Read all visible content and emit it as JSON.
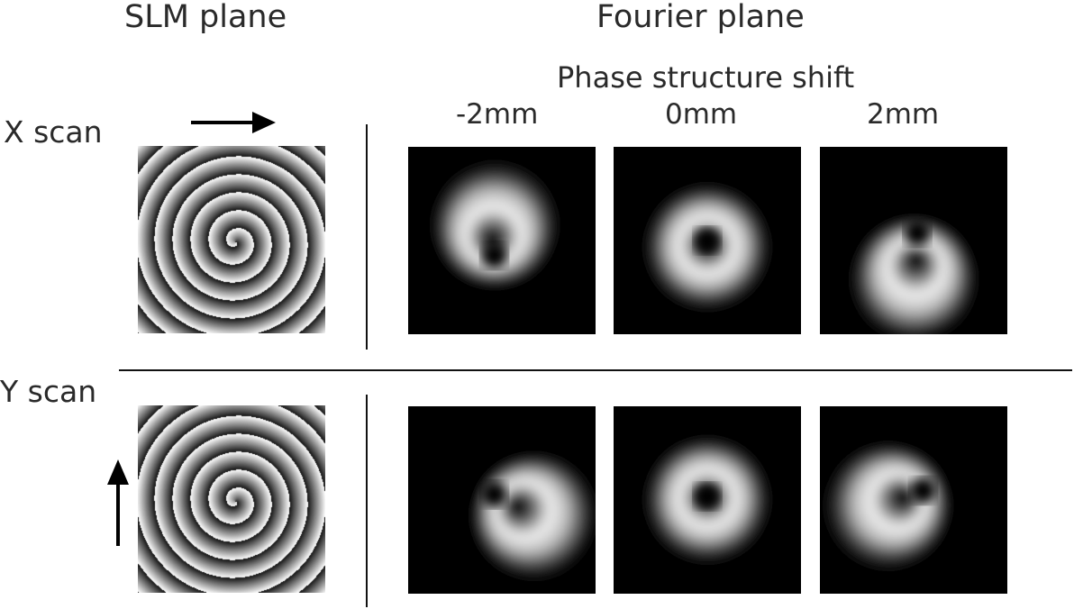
{
  "headers": {
    "slm": "SLM plane",
    "fourier": "Fourier plane",
    "subtitle": "Phase structure shift"
  },
  "shifts": [
    "-2mm",
    "0mm",
    "2mm"
  ],
  "rows": [
    {
      "label": "X scan",
      "arrow_direction": "right",
      "spots": [
        {
          "center": [
            0.46,
            0.58
          ],
          "ring": [
            0.48,
            0.45
          ]
        },
        {
          "center": [
            0.5,
            0.5
          ],
          "ring": [
            0.5,
            0.52
          ]
        },
        {
          "center": [
            0.52,
            0.46
          ],
          "ring": [
            0.5,
            0.62
          ]
        }
      ]
    },
    {
      "label": "Y scan",
      "arrow_direction": "up",
      "spots": [
        {
          "center": [
            0.46,
            0.47
          ],
          "ring": [
            0.6,
            0.55
          ]
        },
        {
          "center": [
            0.5,
            0.48
          ],
          "ring": [
            0.5,
            0.5
          ]
        },
        {
          "center": [
            0.55,
            0.45
          ],
          "ring": [
            0.42,
            0.52
          ]
        }
      ]
    }
  ]
}
